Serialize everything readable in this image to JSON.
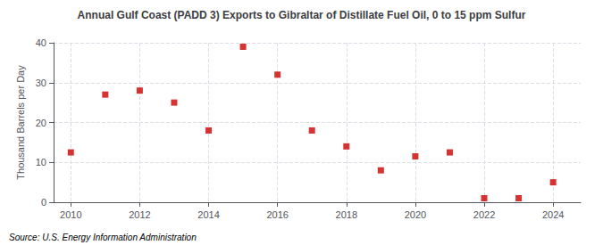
{
  "chart_data": {
    "type": "scatter",
    "title": "Annual Gulf Coast (PADD 3) Exports to Gibraltar of Distillate Fuel Oil, 0 to 15 ppm Sulfur",
    "ylabel": "Thousand Barrels per Day",
    "annotations": [
      "Source: U.S. Energy Information Administration"
    ],
    "x": [
      2010,
      2011,
      2012,
      2013,
      2014,
      2015,
      2016,
      2017,
      2018,
      2019,
      2020,
      2021,
      2022,
      2023,
      2024
    ],
    "values": [
      12.5,
      27.0,
      28.0,
      25.0,
      18.0,
      39.0,
      32.0,
      18.0,
      14.0,
      8.0,
      11.5,
      12.5,
      1.0,
      1.0,
      5.0
    ],
    "color": "#cc0000",
    "marker": "square",
    "xlim": [
      2009.5,
      2024.8
    ],
    "xticks": [
      2010,
      2012,
      2014,
      2016,
      2018,
      2020,
      2022,
      2024
    ],
    "ylim": [
      0,
      40
    ],
    "yticks": [
      0,
      10,
      20,
      30,
      40
    ],
    "grid": true
  }
}
